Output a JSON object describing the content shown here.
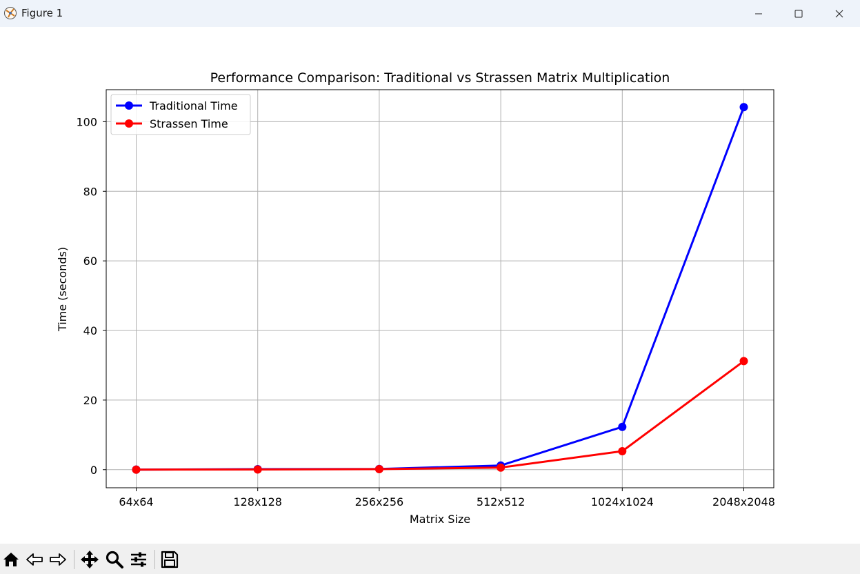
{
  "window": {
    "title": "Figure 1",
    "controls": [
      "minimize-icon",
      "maximize-icon",
      "close-icon"
    ]
  },
  "toolbar": {
    "buttons": [
      "home-icon",
      "back-icon",
      "forward-icon",
      "pan-icon",
      "zoom-icon",
      "configure-subplots-icon",
      "save-icon"
    ]
  },
  "chart_data": {
    "type": "line",
    "title": "Performance Comparison: Traditional vs Strassen Matrix Multiplication",
    "xlabel": "Matrix Size",
    "ylabel": "Time (seconds)",
    "categories": [
      "64x64",
      "128x128",
      "256x256",
      "512x512",
      "1024x1024",
      "2048x2048"
    ],
    "ylim": [
      -5.2,
      109.2
    ],
    "yticks": [
      0,
      20,
      40,
      60,
      80,
      100
    ],
    "grid": true,
    "legend_position": "upper left",
    "series": [
      {
        "name": "Traditional Time",
        "color": "#0000ff",
        "values": [
          0.02,
          0.15,
          0.2,
          1.2,
          12.3,
          104.2
        ]
      },
      {
        "name": "Strassen Time",
        "color": "#ff0000",
        "values": [
          0.01,
          0.05,
          0.15,
          0.6,
          5.3,
          31.2
        ]
      }
    ]
  }
}
